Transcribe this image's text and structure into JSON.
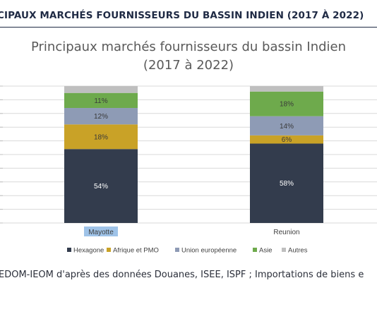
{
  "header": {
    "title": "CIPAUX MARCHÉS FOURNISSEURS DU BASSIN INDIEN (2017 À 2022)"
  },
  "source_text": "EDOM-IEOM d'après des données Douanes, ISEE, ISPF ; Importations de biens e",
  "colors": {
    "Hexagone": "#333c4d",
    "Afrique et PMO": "#c9a227",
    "Union européenne": "#8e9bb5",
    "Asie": "#6eaa4c",
    "Autres": "#bfbfbf",
    "gridline": "#d9d9d9",
    "highlight": "#9fc3e8"
  },
  "chart_data": {
    "type": "bar",
    "stacked": true,
    "title_line1": "Principaux marchés fournisseurs du bassin Indien",
    "title_line2": "(2017 à 2022)",
    "categories": [
      "Mayotte",
      "Reunion"
    ],
    "highlighted_category": "Mayotte",
    "series": [
      {
        "name": "Hexagone",
        "values": [
          54,
          58
        ],
        "labels": [
          "54%",
          "58%"
        ]
      },
      {
        "name": "Afrique et PMO",
        "values": [
          18,
          6
        ],
        "labels": [
          "18%",
          "6%"
        ]
      },
      {
        "name": "Union européenne",
        "values": [
          12,
          14
        ],
        "labels": [
          "12%",
          "14%"
        ]
      },
      {
        "name": "Asie",
        "values": [
          11,
          18
        ],
        "labels": [
          "11%",
          "18%"
        ]
      },
      {
        "name": "Autres",
        "values": [
          5,
          4
        ],
        "labels": [
          "",
          ""
        ]
      }
    ],
    "ylim": [
      0,
      100
    ],
    "grid": true,
    "legend_position": "bottom"
  }
}
